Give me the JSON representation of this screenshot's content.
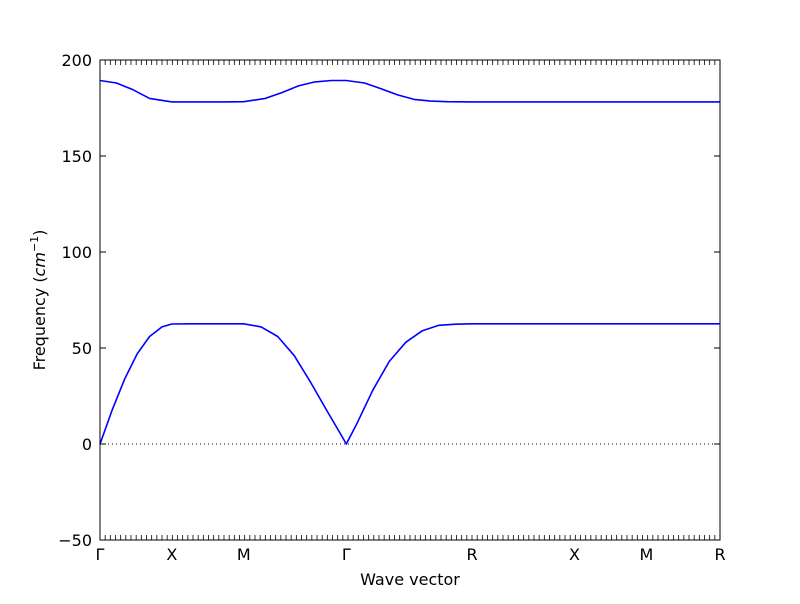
{
  "chart_data": {
    "type": "line",
    "title": "",
    "xlabel": "Wave vector",
    "ylabel": "Frequency (cm⁻¹)",
    "ylabel_parts": {
      "main": "Frequency (",
      "var": "cm",
      "sup": "−1",
      "close": ")"
    },
    "xlim": [
      0,
      7.5
    ],
    "ylim": [
      -50,
      200
    ],
    "yticks": [
      {
        "value": -50,
        "label": "−50"
      },
      {
        "value": 0,
        "label": "0"
      },
      {
        "value": 50,
        "label": "50"
      },
      {
        "value": 100,
        "label": "100"
      },
      {
        "value": 150,
        "label": "150"
      },
      {
        "value": 200,
        "label": "200"
      }
    ],
    "xticks": [
      {
        "value": 0,
        "label": "Γ"
      },
      {
        "value": 0.87,
        "label": "X"
      },
      {
        "value": 1.74,
        "label": "M"
      },
      {
        "value": 2.98,
        "label": "Γ"
      },
      {
        "value": 4.5,
        "label": "R"
      },
      {
        "value": 5.74,
        "label": "X"
      },
      {
        "value": 6.61,
        "label": "M"
      },
      {
        "value": 7.5,
        "label": "R"
      }
    ],
    "zero_line": {
      "value": 0,
      "style": "dotted"
    },
    "line_color": "#0000ff",
    "series": [
      {
        "x": [
          0,
          0.15,
          0.3,
          0.45,
          0.6,
          0.75,
          0.87,
          1.1,
          1.3,
          1.5,
          1.74,
          1.95,
          2.15,
          2.35,
          2.55,
          2.75,
          2.9,
          2.98,
          3.1,
          3.3,
          3.5,
          3.7,
          3.9,
          4.1,
          4.3,
          4.5,
          5.0,
          5.74,
          6.2,
          6.61,
          7.0,
          7.5
        ],
        "y": [
          0,
          18,
          34,
          47,
          56,
          61,
          62.5,
          62.6,
          62.6,
          62.6,
          62.6,
          61,
          56,
          46,
          32,
          17,
          6,
          0,
          10,
          28,
          43,
          53,
          59,
          61.8,
          62.4,
          62.6,
          62.6,
          62.6,
          62.6,
          62.6,
          62.6,
          62.6
        ]
      },
      {
        "x": [
          0,
          0.2,
          0.4,
          0.6,
          0.87,
          1.2,
          1.5,
          1.74,
          2.0,
          2.2,
          2.4,
          2.6,
          2.8,
          2.98,
          3.2,
          3.4,
          3.6,
          3.8,
          4.0,
          4.2,
          4.5,
          5.0,
          5.74,
          6.61,
          7.5
        ],
        "y": [
          189.3,
          188,
          184.5,
          180,
          178.2,
          178.2,
          178.2,
          178.3,
          180,
          183,
          186.5,
          188.6,
          189.3,
          189.3,
          188,
          185,
          181.8,
          179.5,
          178.6,
          178.3,
          178.2,
          178.2,
          178.2,
          178.2,
          178.2
        ]
      }
    ]
  }
}
